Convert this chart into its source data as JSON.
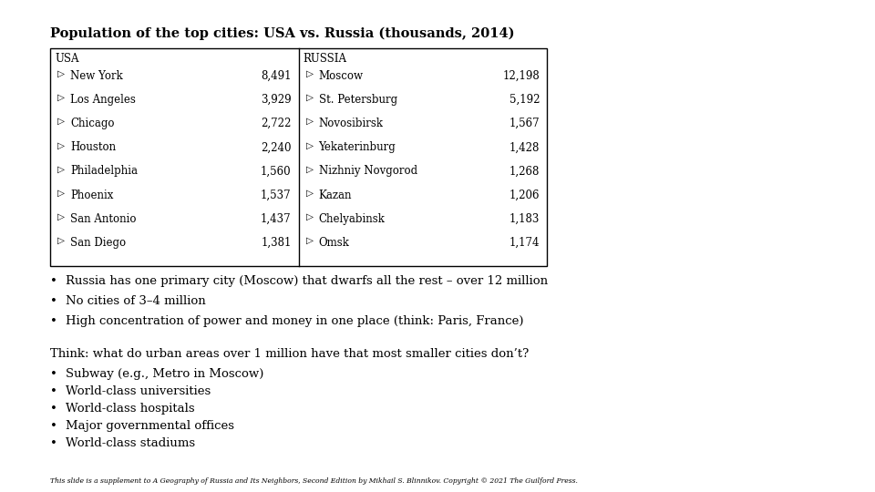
{
  "title": "Population of the top cities: USA vs. Russia (thousands, 2014)",
  "usa_cities": [
    "New York",
    "Los Angeles",
    "Chicago",
    "Houston",
    "Philadelphia",
    "Phoenix",
    "San Antonio",
    "San Diego"
  ],
  "usa_pops": [
    "8,491",
    "3,929",
    "2,722",
    "2,240",
    "1,560",
    "1,537",
    "1,437",
    "1,381"
  ],
  "russia_cities": [
    "Moscow",
    "St. Petersburg",
    "Novosibirsk",
    "Yekaterinburg",
    "Nizhniy Novgorod",
    "Kazan",
    "Chelyabinsk",
    "Omsk"
  ],
  "russia_pops": [
    "12,198",
    "5,192",
    "1,567",
    "1,428",
    "1,268",
    "1,206",
    "1,183",
    "1,174"
  ],
  "bullets1": [
    "Russia has one primary city (Moscow) that dwarfs all the rest – over 12 million",
    "No cities of 3–4 million",
    "High concentration of power and money in one place (think: Paris, France)"
  ],
  "think_label": "Think: what do urban areas over 1 million have that most smaller cities don’t?",
  "bullets2": [
    "Subway (e.g., Metro in Moscow)",
    "World-class universities",
    "World-class hospitals",
    "Major governmental offices",
    "World-class stadiums"
  ],
  "footer": "This slide is a supplement to A Geography of Russia and Its Neighbors, Second Edition by Mikhail S. Blinnikov. Copyright © 2021 The Guilford Press.",
  "bg_color": "#ffffff",
  "text_color": "#000000",
  "table_border_color": "#000000",
  "title_fontsize": 10.5,
  "table_fontsize": 8.5,
  "body_fontsize": 9.5
}
